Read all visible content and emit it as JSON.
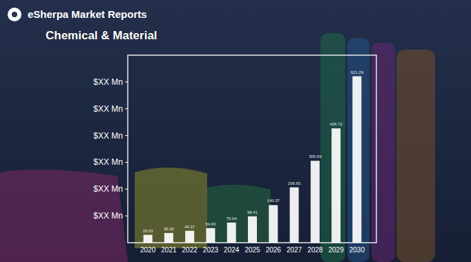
{
  "header": {
    "brand": "eSherpa Market Reports",
    "category": "Chemical & Material"
  },
  "chart_data": {
    "type": "bar",
    "categories": [
      "2020",
      "2021",
      "2022",
      "2023",
      "2024",
      "2025",
      "2026",
      "2027",
      "2028",
      "2029",
      "2030"
    ],
    "values": [
      29.53,
      36.29,
      44.37,
      54.63,
      75.04,
      98.41,
      140.37,
      206.65,
      305.69,
      426.72,
      621.29
    ],
    "color": "#ffffff",
    "ylim": [
      0,
      700
    ],
    "yticks": [
      {
        "value": 100,
        "label": "$XX Mn"
      },
      {
        "value": 200,
        "label": "$XX Mn"
      },
      {
        "value": 300,
        "label": "$XX Mn"
      },
      {
        "value": 400,
        "label": "$XX Mn"
      },
      {
        "value": 500,
        "label": "$XX Mn"
      },
      {
        "value": 600,
        "label": "$XX Mn"
      }
    ],
    "grid": false,
    "data_labels": true
  }
}
